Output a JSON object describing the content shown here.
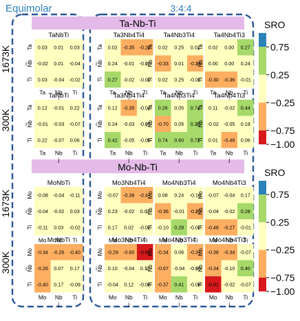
{
  "header": {
    "equimolar": "Equimolar",
    "ratio": "3:4:4"
  },
  "systems": [
    {
      "title": "Ta-Nb-Ti",
      "elements": [
        "Ta",
        "Nb",
        "Ti"
      ],
      "panels": [
        {
          "temp": "1673K",
          "alloy": "TaNbTi",
          "m": [
            [
              0.03,
              0.01,
              0.03
            ],
            [
              -0.02,
              0.01,
              -0.04
            ],
            [
              0.03,
              -0.04,
              -0.02
            ]
          ]
        },
        {
          "temp": "1673K",
          "alloy": "Ta3Nb4Ti4",
          "m": [
            [
              0.02,
              -0.35,
              -0.28
            ],
            [
              0.24,
              -0.01,
              -0.02
            ],
            [
              0.27,
              -0.02,
              -0.02
            ]
          ]
        },
        {
          "temp": "1673K",
          "alloy": "Ta4Nb3Ti4",
          "m": [
            [
              0.02,
              0.25,
              0.02
            ],
            [
              -0.33,
              0.01,
              -0.34
            ],
            [
              0.02,
              0.25,
              -0.01
            ]
          ]
        },
        {
          "temp": "1673K",
          "alloy": "Ta4Nb4Ti3",
          "m": [
            [
              0.02,
              -0.0,
              0.27
            ],
            [
              -0.0,
              -0.0,
              0.24
            ],
            [
              -0.3,
              -0.36,
              -0.01
            ]
          ]
        },
        {
          "temp": "300K",
          "alloy": "TaNbTi",
          "m": [
            [
              0.12,
              -0.01,
              0.22
            ],
            [
              -0.01,
              -0.03,
              -0.07
            ],
            [
              0.22,
              -0.07,
              0.06
            ]
          ]
        },
        {
          "temp": "300K",
          "alloy": "Ta3Nb4Ti4",
          "m": [
            [
              0.12,
              -0.35,
              -0.04
            ],
            [
              0.24,
              -0.03,
              -0.05
            ],
            [
              0.42,
              -0.05,
              -0.05
            ]
          ]
        },
        {
          "temp": "300K",
          "alloy": "Ta4Nb3Ti4",
          "m": [
            [
              0.26,
              0.05,
              0.74
            ],
            [
              -0.7,
              0.05,
              0.29
            ],
            [
              0.74,
              0.6,
              0.72
            ]
          ]
        },
        {
          "temp": "300K",
          "alloy": "Ta4Nb4Ti3",
          "m": [
            [
              0.11,
              -0.02,
              0.44
            ],
            [
              -0.02,
              -0.05,
              0.18
            ],
            [
              0.01,
              -0.46,
              0.06
            ]
          ]
        }
      ]
    },
    {
      "title": "Mo-Nb-Ti",
      "elements": [
        "Mo",
        "Nb",
        "Ti"
      ],
      "panels": [
        {
          "temp": "1673K",
          "alloy": "MoNbTi",
          "m": [
            [
              -0.08,
              -0.04,
              -0.11
            ],
            [
              -0.04,
              -0.02,
              0.03
            ],
            [
              -0.11,
              0.03,
              -0.02
            ]
          ]
        },
        {
          "temp": "1673K",
          "alloy": "Mo3Nb4Ti4",
          "m": [
            [
              -0.07,
              -0.38,
              -0.47
            ],
            [
              0.23,
              -0.02,
              0.02
            ],
            [
              0.17,
              0.02,
              -0.02
            ]
          ]
        },
        {
          "temp": "1673K",
          "alloy": "Mo4Nb3Ti4",
          "m": [
            [
              0.08,
              0.24,
              -0.1
            ],
            [
              -0.36,
              -0.01,
              -0.29
            ],
            [
              -0.1,
              0.28,
              -0.02
            ]
          ]
        },
        {
          "temp": "1673K",
          "alloy": "Mo4Nb4Ti3",
          "m": [
            [
              -0.07,
              -0.04,
              0.17
            ],
            [
              -0.04,
              -0.02,
              0.28
            ],
            [
              -0.48,
              -0.27,
              -0.01
            ]
          ]
        },
        {
          "temp": "300K",
          "alloy": "MoNbTi",
          "m": [
            [
              -0.34,
              -0.26,
              -0.4
            ],
            [
              -0.26,
              0.07,
              0.17
            ],
            [
              -0.4,
              0.17,
              -0.09
            ]
          ]
        },
        {
          "temp": "300K",
          "alloy": "Mo3Nb4Ti4",
          "m": [
            [
              -0.29,
              -0.6,
              -0.82
            ],
            [
              0.1,
              -0.04,
              0.12
            ],
            [
              -0.04,
              0.12,
              -0.08
            ]
          ]
        },
        {
          "temp": "300K",
          "alloy": "Mo4Nb3Ti4",
          "m": [
            [
              -0.34,
              0.06,
              -0.37
            ],
            [
              -0.67,
              -0.04,
              -0.06
            ],
            [
              -0.37,
              0.41,
              -0.08
            ]
          ]
        },
        {
          "temp": "300K",
          "alloy": "Mo4Nb4Ti3",
          "m": [
            [
              -0.38,
              -0.34,
              -0.07
            ],
            [
              -0.34,
              -0.1,
              0.4
            ],
            [
              -0.91,
              -0.02,
              -0.07
            ]
          ]
        }
      ]
    }
  ],
  "axis": {
    "xlabel": "j",
    "ylabel": "i"
  },
  "colorbar": {
    "label": "SRO",
    "ticks": [
      "0.75",
      "0.25",
      "−0.25",
      "−0.75",
      "−1.00"
    ]
  },
  "colors": {
    "band_fill": "#e4bbe8",
    "dash": "#2b5597",
    "header": "#2e7fb8",
    "bins": [
      "#d7191c",
      "#fdae61",
      "#ffffbf",
      "#a6d96a",
      "#2b83ba"
    ]
  }
}
